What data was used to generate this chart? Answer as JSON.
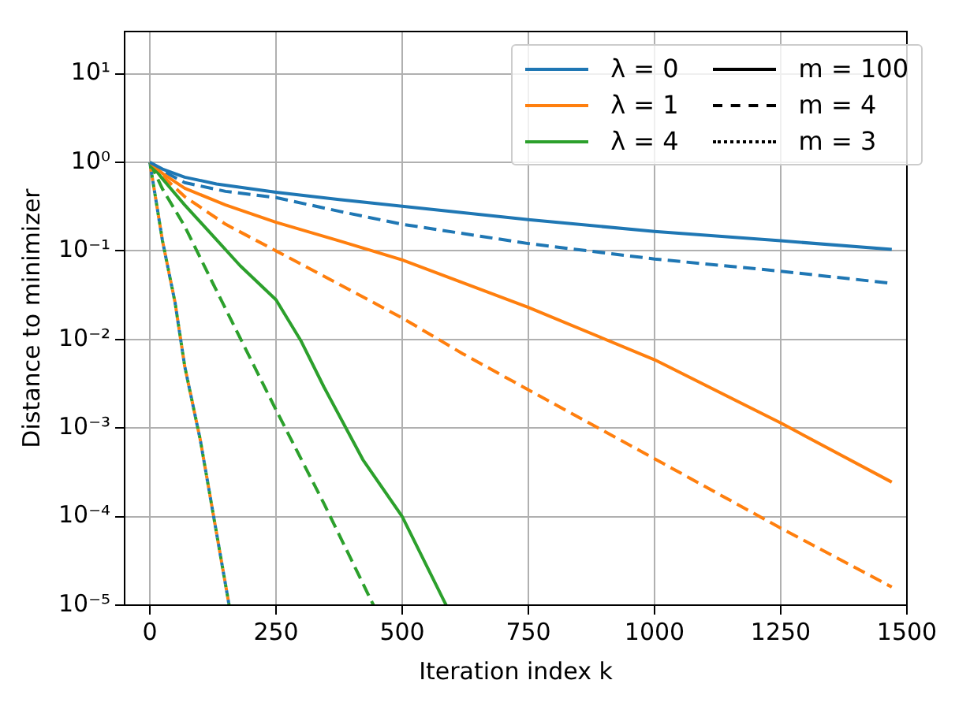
{
  "chart_data": {
    "type": "line",
    "xlabel": "Iteration index k",
    "ylabel": "Distance to minimizer",
    "xlim": [
      -50,
      1500
    ],
    "xticks": [
      0,
      250,
      500,
      750,
      1000,
      1250,
      1500
    ],
    "ylim": [
      1e-05,
      30
    ],
    "log": "y",
    "yticks": [
      {
        "value": 1e-05,
        "label": "10⁻⁵"
      },
      {
        "value": 0.0001,
        "label": "10⁻⁴"
      },
      {
        "value": 0.001,
        "label": "10⁻³"
      },
      {
        "value": 0.01,
        "label": "10⁻²"
      },
      {
        "value": 0.1,
        "label": "10⁻¹"
      },
      {
        "value": 1,
        "label": "10⁰"
      },
      {
        "value": 10,
        "label": "10¹"
      }
    ],
    "grid": true,
    "legend": "top right",
    "marker": "none",
    "series": [
      {
        "name": "λ = 0",
        "color": "#1f77b4",
        "line_style": "solid",
        "x": [
          0,
          25,
          69,
          132,
          250,
          375,
          500,
          750,
          1000,
          1250,
          1470
        ],
        "values": [
          1,
          0.84,
          0.68,
          0.57,
          0.46,
          0.38,
          0.32,
          0.225,
          0.166,
          0.13,
          0.104
        ]
      },
      {
        "name": "λ = 1",
        "color": "#ff7f0e",
        "line_style": "solid",
        "x": [
          0,
          25,
          69,
          150,
          250,
          375,
          500,
          750,
          1000,
          1250,
          1470
        ],
        "values": [
          1,
          0.75,
          0.51,
          0.33,
          0.21,
          0.13,
          0.079,
          0.023,
          0.0059,
          0.00114,
          0.000245
        ]
      },
      {
        "name": "λ = 4",
        "color": "#2ca02c",
        "line_style": "solid",
        "x": [
          0,
          25,
          69,
          124,
          179,
          250,
          300,
          345,
          422,
          500,
          587
        ],
        "values": [
          1,
          0.65,
          0.33,
          0.15,
          0.068,
          0.028,
          0.0095,
          0.0029,
          0.00044,
          0.0001,
          1e-05
        ]
      },
      {
        "color": "#1f77b4",
        "line_style": "dashed",
        "x": [
          0,
          25,
          69,
          150,
          250,
          375,
          500,
          750,
          1000,
          1250,
          1470
        ],
        "values": [
          1,
          0.8,
          0.59,
          0.47,
          0.4,
          0.28,
          0.2,
          0.121,
          0.081,
          0.059,
          0.043
        ]
      },
      {
        "color": "#ff7f0e",
        "line_style": "dashed",
        "x": [
          0,
          25,
          69,
          150,
          250,
          375,
          500,
          620,
          750,
          1000,
          1250,
          1470
        ],
        "values": [
          1,
          0.7,
          0.41,
          0.2,
          0.1,
          0.042,
          0.0175,
          0.0069,
          0.0027,
          0.00045,
          7.4e-05,
          1.6e-05
        ]
      },
      {
        "color": "#2ca02c",
        "line_style": "dashed",
        "x": [
          0,
          25,
          69,
          124,
          250,
          345,
          443
        ],
        "values": [
          1,
          0.5,
          0.19,
          0.044,
          0.0016,
          0.00014,
          1e-05
        ]
      },
      {
        "color": "#1f77b4",
        "line_style": "dotted",
        "x": [
          0,
          25,
          50,
          69,
          100,
          157
        ],
        "values": [
          1,
          0.13,
          0.026,
          0.005,
          0.00073,
          1e-05
        ]
      },
      {
        "color": "#ff7f0e",
        "line_style": "dotted",
        "x": [
          0,
          25,
          50,
          69,
          100,
          157
        ],
        "values": [
          1,
          0.13,
          0.026,
          0.005,
          0.00073,
          1e-05
        ]
      },
      {
        "color": "#2ca02c",
        "line_style": "dotted",
        "x": [
          0,
          25,
          50,
          69,
          100,
          157
        ],
        "values": [
          1,
          0.13,
          0.026,
          0.005,
          0.00073,
          1e-05
        ]
      },
      {
        "name": "m = 100",
        "color": "#000000",
        "line_style": "solid"
      },
      {
        "name": "m = 4",
        "color": "#000000",
        "line_style": "dashed"
      },
      {
        "name": "m = 3",
        "color": "#000000",
        "line_style": "dotted"
      }
    ]
  }
}
